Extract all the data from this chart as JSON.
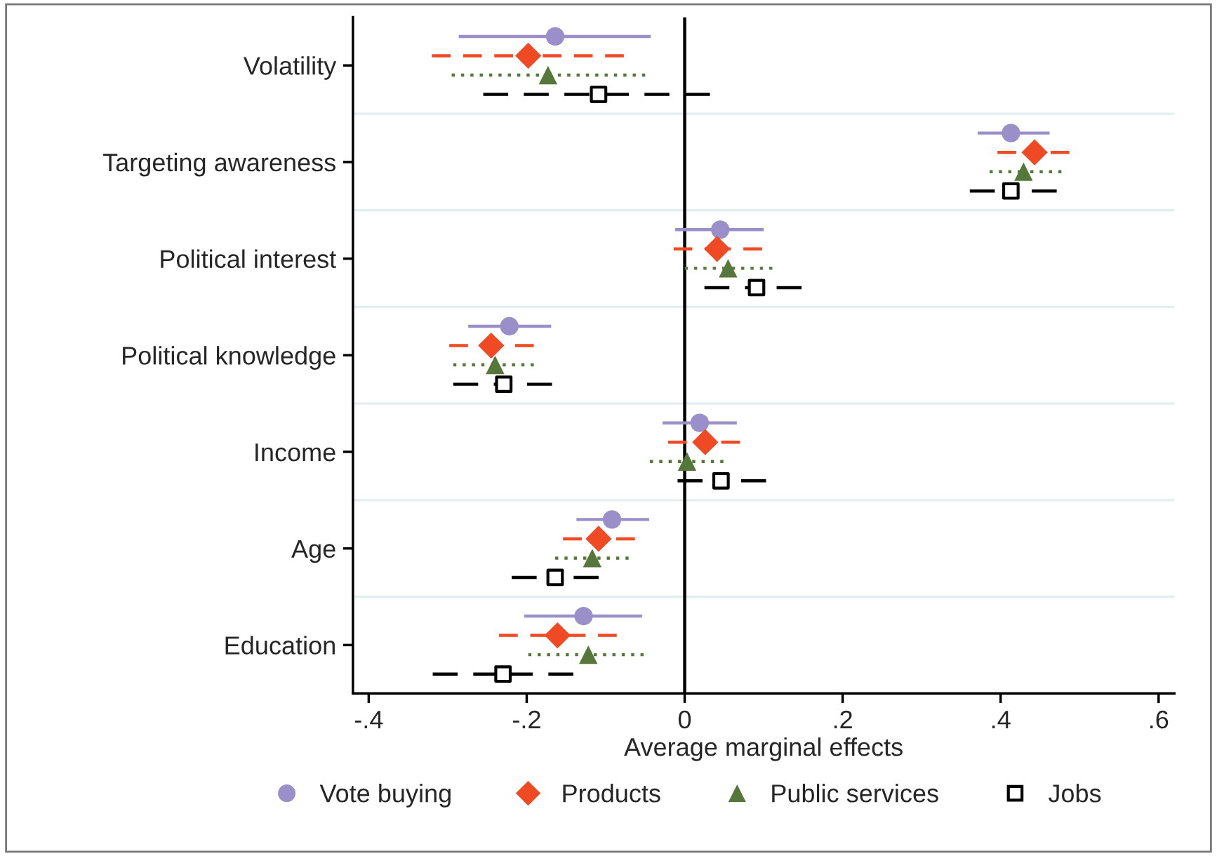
{
  "chart_data": {
    "type": "scatter",
    "orientation": "horizontal",
    "xlabel": "Average marginal effects",
    "categories": [
      "Volatility",
      "Targeting awareness",
      "Political interest",
      "Political knowledge",
      "Income",
      "Age",
      "Education"
    ],
    "xlim": [
      -0.42,
      0.62
    ],
    "xticks": [
      {
        "value": -0.4,
        "label": "-.4"
      },
      {
        "value": -0.2,
        "label": "-.2"
      },
      {
        "value": 0,
        "label": "0"
      },
      {
        "value": 0.2,
        "label": ".2"
      },
      {
        "value": 0.4,
        "label": ".4"
      },
      {
        "value": 0.6,
        "label": ".6"
      }
    ],
    "grid": "y",
    "legend": "bottom",
    "ref_lines": [
      {
        "axis": "x",
        "value": 0,
        "color": "#000000"
      }
    ],
    "series": [
      {
        "name": "Vote buying",
        "color": "#9a8fc8",
        "marker": "circle",
        "line_style": "solid",
        "values": [
          -0.164,
          0.413,
          0.045,
          -0.222,
          0.019,
          -0.092,
          -0.128
        ],
        "errors": [
          [
            -0.286,
            -0.043
          ],
          [
            0.371,
            0.462
          ],
          [
            -0.012,
            0.1
          ],
          [
            -0.274,
            -0.169
          ],
          [
            -0.028,
            0.066
          ],
          [
            -0.137,
            -0.045
          ],
          [
            -0.203,
            -0.054
          ]
        ]
      },
      {
        "name": "Products",
        "color": "#f04a24",
        "marker": "diamond",
        "line_style": "dashed",
        "values": [
          -0.198,
          0.443,
          0.041,
          -0.245,
          0.026,
          -0.109,
          -0.161
        ],
        "errors": [
          [
            -0.32,
            -0.077
          ],
          [
            0.396,
            0.487
          ],
          [
            -0.014,
            0.098
          ],
          [
            -0.298,
            -0.191
          ],
          [
            -0.021,
            0.07
          ],
          [
            -0.154,
            -0.063
          ],
          [
            -0.235,
            -0.086
          ]
        ]
      },
      {
        "name": "Public services",
        "color": "#56773a",
        "marker": "triangle",
        "line_style": "dotted",
        "values": [
          -0.173,
          0.429,
          0.055,
          -0.24,
          0.003,
          -0.117,
          -0.122
        ],
        "errors": [
          [
            -0.295,
            -0.05
          ],
          [
            0.386,
            0.477
          ],
          [
            0,
            0.111
          ],
          [
            -0.293,
            -0.191
          ],
          [
            -0.044,
            0.049
          ],
          [
            -0.164,
            -0.071
          ],
          [
            -0.198,
            -0.052
          ]
        ]
      },
      {
        "name": "Jobs",
        "color": "#000000",
        "marker": "square",
        "line_style": "dashed",
        "values": [
          -0.109,
          0.413,
          0.091,
          -0.229,
          0.046,
          -0.164,
          -0.23
        ],
        "errors": [
          [
            -0.255,
            0.032
          ],
          [
            0.361,
            0.471
          ],
          [
            0.025,
            0.148
          ],
          [
            -0.293,
            -0.168
          ],
          [
            -0.009,
            0.103
          ],
          [
            -0.219,
            -0.109
          ],
          [
            -0.319,
            -0.141
          ]
        ]
      }
    ]
  }
}
